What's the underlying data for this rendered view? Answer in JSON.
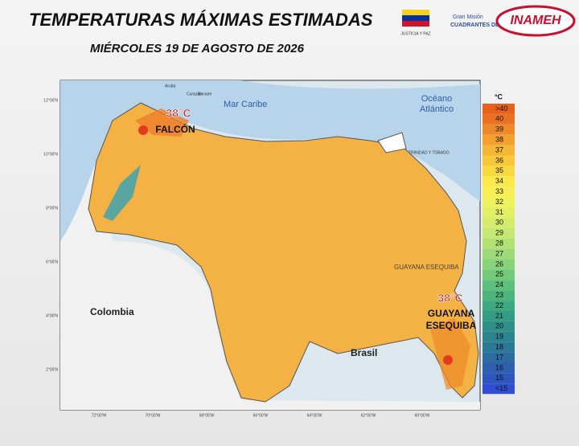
{
  "header": {
    "title": "TEMPERATURAS MÁXIMAS ESTIMADAS",
    "date": "MIÉRCOLES 19 DE AGOSTO DE 2026"
  },
  "logos": {
    "justicia": "JUSTICIA Y PAZ",
    "gran_mision": "Gran Misión",
    "cuadrantes": "CUADRANTES DE PAZ",
    "inameh": "INAMEH"
  },
  "map": {
    "labels": {
      "mar_caribe": "Mar Caribe",
      "oceano": "Océano",
      "atlantico": "Atlántico",
      "colombia": "Colombia",
      "brasil": "Brasil",
      "guayana": "GUAYANA ESEQUIBA",
      "trinidad": "TRINIDAD Y TOBAGO",
      "aruba": "Aruba",
      "curazao": "Curazao",
      "bonaire": "Bonaire"
    },
    "callouts": [
      {
        "temp": "38°C",
        "place": "FALCÓN"
      },
      {
        "temp": "38°C",
        "place": "GUAYANA ESEQUIBA"
      }
    ],
    "lat_ticks": [
      "12°00'N",
      "10°00'N",
      "8°00'N",
      "6°00'N",
      "4°00'N",
      "2°00'N"
    ],
    "lon_ticks": [
      "72°00'W",
      "70°00'W",
      "68°00'W",
      "66°00'W",
      "64°00'W",
      "62°00'W",
      "60°00'W"
    ]
  },
  "legend": {
    "unit": "°C",
    "items": [
      {
        "label": ">40",
        "color": "#e8601c"
      },
      {
        "label": "40",
        "color": "#eb7222"
      },
      {
        "label": "39",
        "color": "#ee8a2a"
      },
      {
        "label": "38",
        "color": "#f2a030"
      },
      {
        "label": "37",
        "color": "#f5b535"
      },
      {
        "label": "36",
        "color": "#f7c83c"
      },
      {
        "label": "35",
        "color": "#f9d940"
      },
      {
        "label": "34",
        "color": "#fbe84a"
      },
      {
        "label": "33",
        "color": "#f7ef55"
      },
      {
        "label": "32",
        "color": "#eef25c"
      },
      {
        "label": "31",
        "color": "#e2f065"
      },
      {
        "label": "30",
        "color": "#d4ec6a"
      },
      {
        "label": "29",
        "color": "#c4e870"
      },
      {
        "label": "28",
        "color": "#b2e274"
      },
      {
        "label": "27",
        "color": "#9edb78"
      },
      {
        "label": "26",
        "color": "#88d37a"
      },
      {
        "label": "25",
        "color": "#72ca7a"
      },
      {
        "label": "24",
        "color": "#5ec07c"
      },
      {
        "label": "23",
        "color": "#4cb57e"
      },
      {
        "label": "22",
        "color": "#3ea880"
      },
      {
        "label": "21",
        "color": "#349c84"
      },
      {
        "label": "20",
        "color": "#2e9088"
      },
      {
        "label": "19",
        "color": "#2c848e"
      },
      {
        "label": "18",
        "color": "#2c7896"
      },
      {
        "label": "17",
        "color": "#2d6ca0"
      },
      {
        "label": "16",
        "color": "#2e5fae"
      },
      {
        "label": "15",
        "color": "#2f55be"
      },
      {
        "label": "<15",
        "color": "#2f4ed0"
      }
    ]
  }
}
